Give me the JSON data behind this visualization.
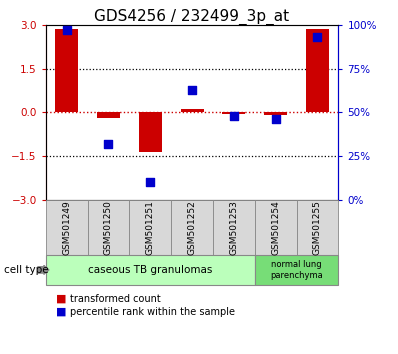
{
  "title": "GDS4256 / 232499_3p_at",
  "samples": [
    "GSM501249",
    "GSM501250",
    "GSM501251",
    "GSM501252",
    "GSM501253",
    "GSM501254",
    "GSM501255"
  ],
  "red_values": [
    2.85,
    -0.2,
    -1.35,
    0.1,
    -0.05,
    -0.1,
    2.85
  ],
  "blue_values": [
    97,
    32,
    10,
    63,
    48,
    46,
    93
  ],
  "ylim_left": [
    -3,
    3
  ],
  "ylim_right": [
    0,
    100
  ],
  "yticks_left": [
    -3,
    -1.5,
    0,
    1.5,
    3
  ],
  "yticks_right": [
    0,
    25,
    50,
    75,
    100
  ],
  "ytick_labels_right": [
    "0%",
    "25%",
    "50%",
    "75%",
    "100%"
  ],
  "hlines_dotted": [
    1.5,
    -1.5
  ],
  "red_color": "#cc0000",
  "blue_color": "#0000cc",
  "bar_width": 0.55,
  "blue_marker_size": 35,
  "cell_type_label": "cell type",
  "group1_label": "caseous TB granulomas",
  "group2_label": "normal lung\nparenchyma",
  "group1_color": "#bbffbb",
  "group2_color": "#77dd77",
  "legend_red_label": "transformed count",
  "legend_blue_label": "percentile rank within the sample",
  "title_fontsize": 11,
  "tick_fontsize": 7.5,
  "sample_fontsize": 6.5,
  "legend_fontsize": 7
}
